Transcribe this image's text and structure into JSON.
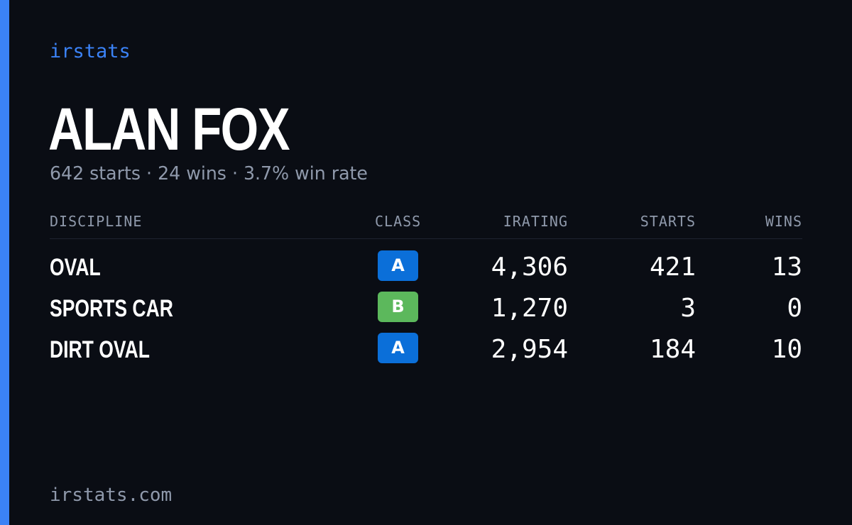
{
  "brand": "irstats",
  "driver": {
    "name": "ALAN FOX",
    "summary": "642 starts · 24 wins · 3.7% win rate"
  },
  "table": {
    "headers": {
      "discipline": "DISCIPLINE",
      "class": "CLASS",
      "irating": "IRATING",
      "starts": "STARTS",
      "wins": "WINS"
    },
    "rows": [
      {
        "discipline": "OVAL",
        "class": "A",
        "irating": "4,306",
        "starts": "421",
        "wins": "13"
      },
      {
        "discipline": "SPORTS CAR",
        "class": "B",
        "irating": "1,270",
        "starts": "3",
        "wins": "0"
      },
      {
        "discipline": "DIRT OVAL",
        "class": "A",
        "irating": "2,954",
        "starts": "184",
        "wins": "10"
      }
    ]
  },
  "footer": "irstats.com",
  "colors": {
    "background": "#0a0d14",
    "accent": "#3b82f6",
    "class_a": "#0b6fd9",
    "class_b": "#5cb85c",
    "muted_text": "#8f99ab"
  }
}
